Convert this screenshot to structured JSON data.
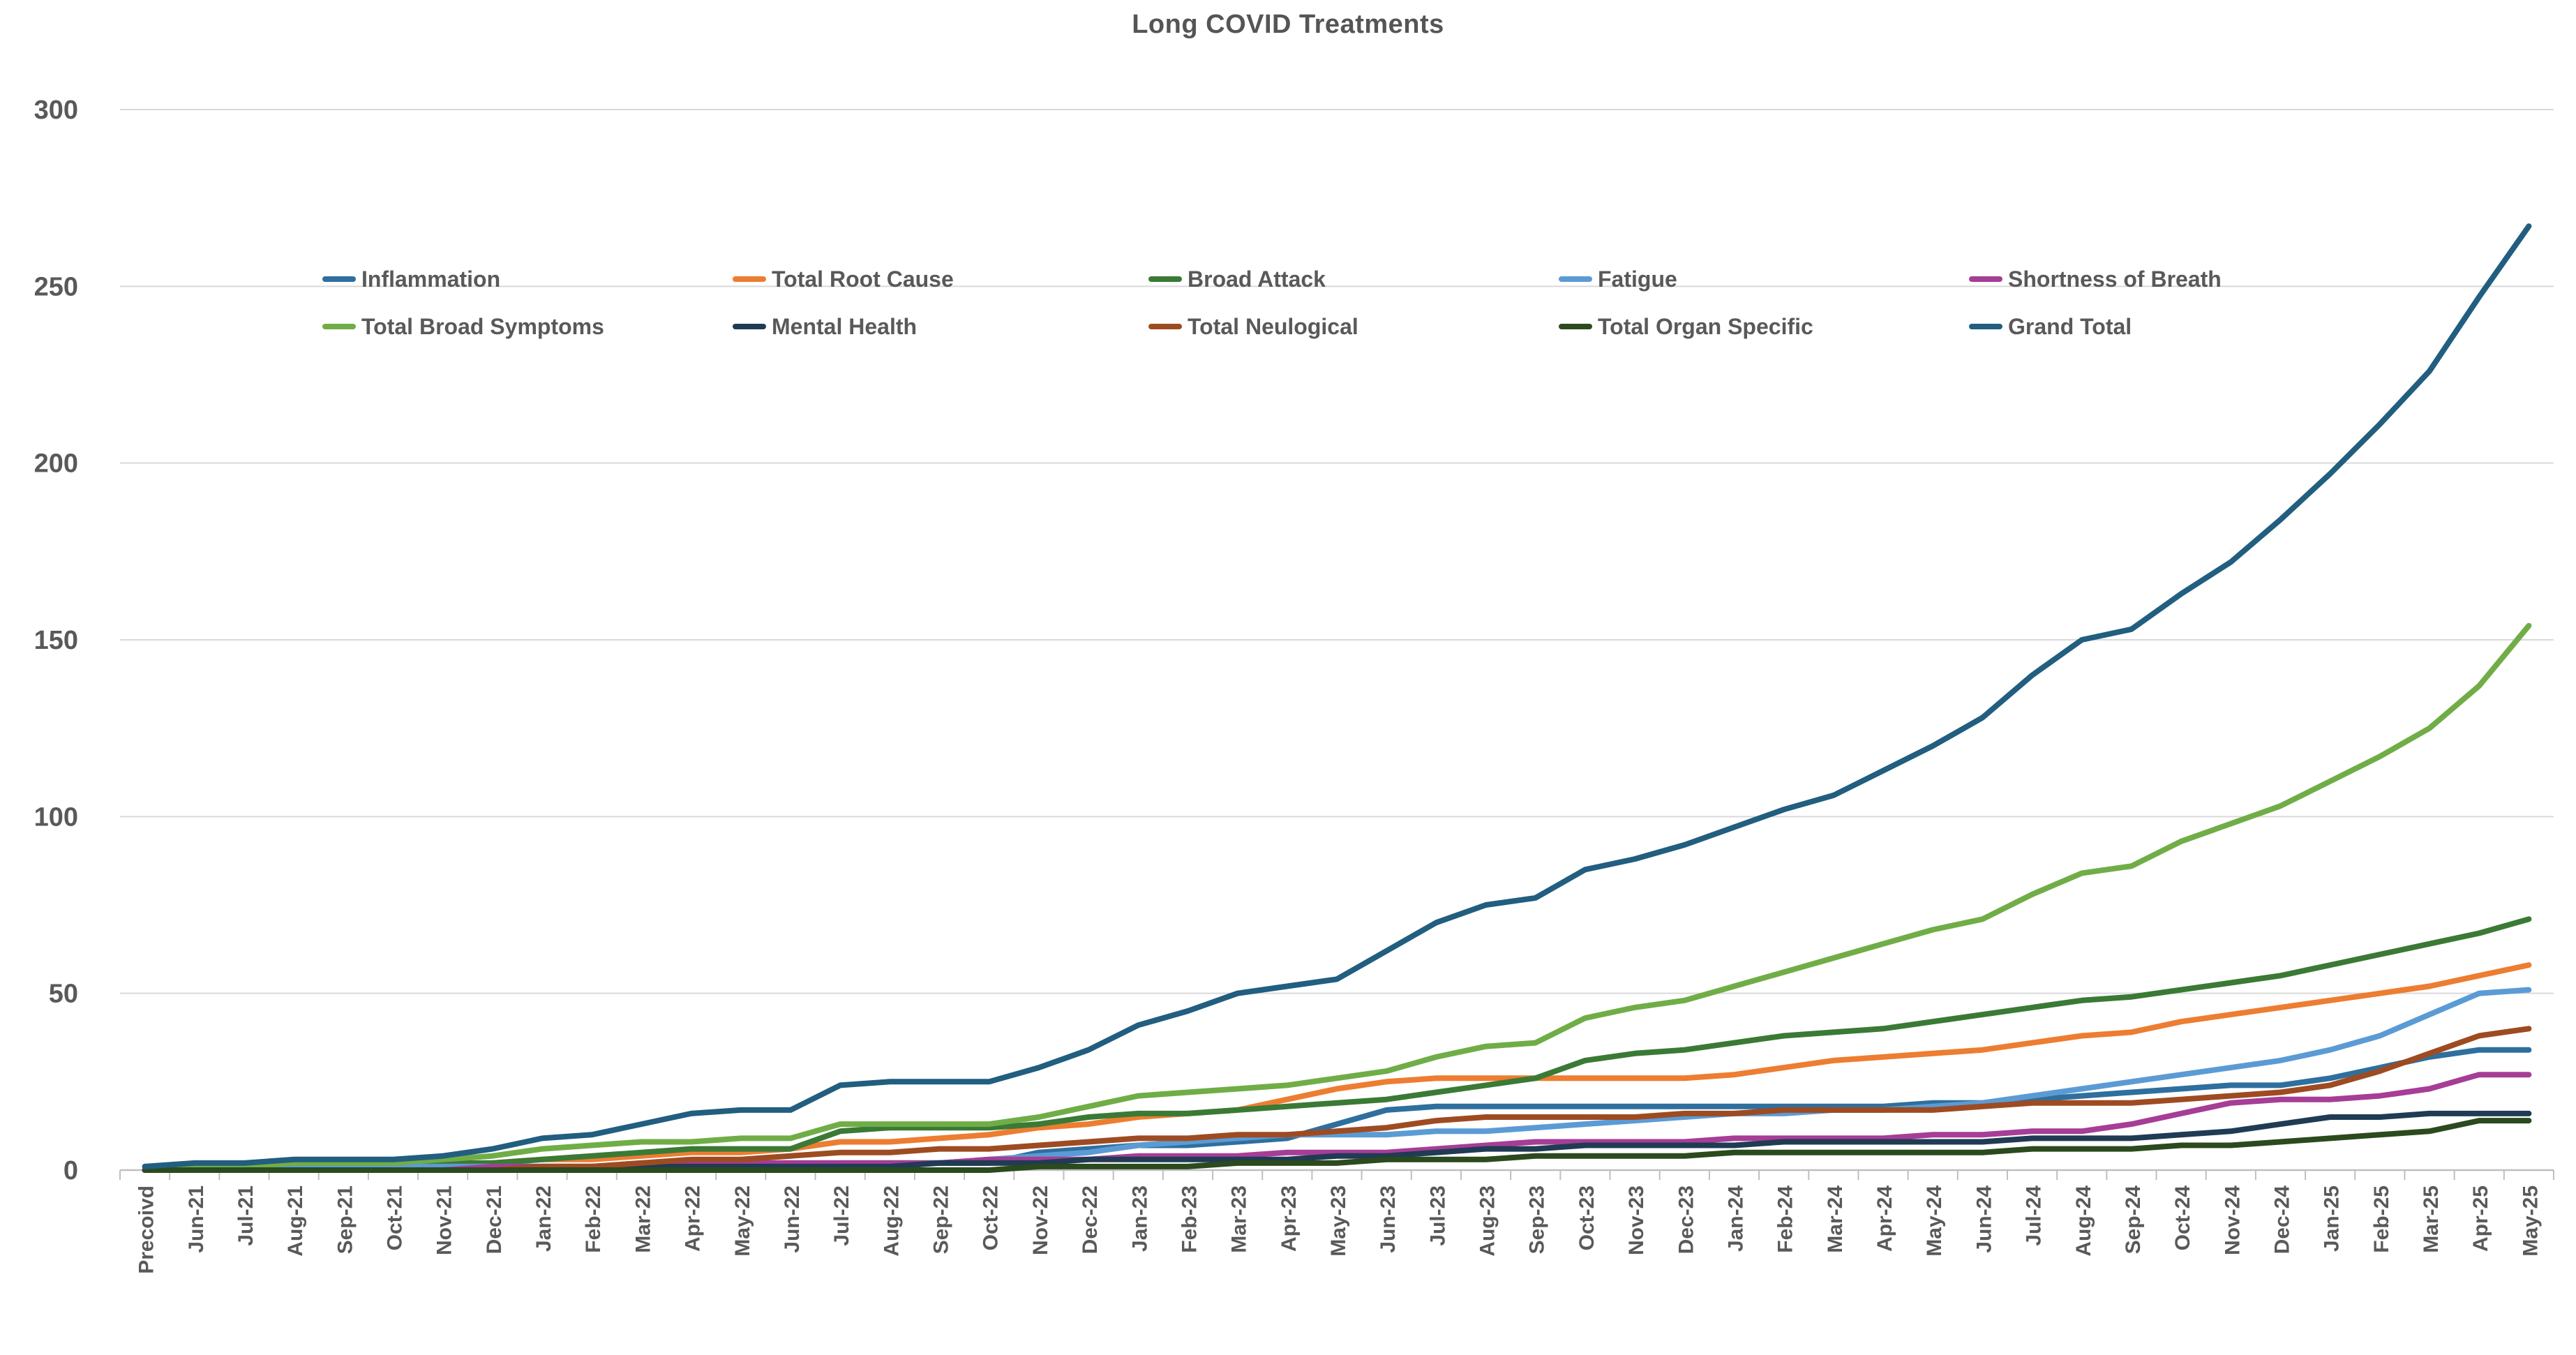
{
  "chart_data": {
    "type": "line",
    "title": "Long COVID Treatments",
    "xlabel": "",
    "ylabel": "",
    "ylim": [
      0,
      300
    ],
    "y_ticks": [
      0,
      50,
      100,
      150,
      200,
      250,
      300
    ],
    "grid": "horizontal",
    "legend_position": "inside-top-left-two-rows",
    "categories": [
      "Precoivd",
      "Jun-21",
      "Jul-21",
      "Aug-21",
      "Sep-21",
      "Oct-21",
      "Nov-21",
      "Dec-21",
      "Jan-22",
      "Feb-22",
      "Mar-22",
      "Apr-22",
      "May-22",
      "Jun-22",
      "Jul-22",
      "Aug-22",
      "Sep-22",
      "Oct-22",
      "Nov-22",
      "Dec-22",
      "Jan-23",
      "Feb-23",
      "Mar-23",
      "Apr-23",
      "May-23",
      "Jun-23",
      "Jul-23",
      "Aug-23",
      "Sep-23",
      "Oct-23",
      "Nov-23",
      "Dec-23",
      "Jan-24",
      "Feb-24",
      "Mar-24",
      "Apr-24",
      "May-24",
      "Jun-24",
      "Jul-24",
      "Aug-24",
      "Sep-24",
      "Oct-24",
      "Nov-24",
      "Dec-24",
      "Jan-25",
      "Feb-25",
      "Mar-25",
      "Apr-25",
      "May-25"
    ],
    "series": [
      {
        "name": "Inflammation",
        "color": "#2E6F9E",
        "values": [
          0,
          1,
          1,
          1,
          1,
          1,
          1,
          1,
          1,
          1,
          1,
          1,
          1,
          1,
          2,
          2,
          2,
          2,
          5,
          6,
          7,
          7,
          8,
          9,
          13,
          17,
          18,
          18,
          18,
          18,
          18,
          18,
          18,
          18,
          18,
          18,
          19,
          19,
          20,
          21,
          22,
          23,
          24,
          24,
          26,
          29,
          32,
          34,
          34
        ]
      },
      {
        "name": "Total Root Cause",
        "color": "#ED7D31",
        "values": [
          0,
          0,
          0,
          1,
          1,
          1,
          1,
          2,
          3,
          3,
          4,
          5,
          5,
          6,
          8,
          8,
          9,
          10,
          12,
          13,
          15,
          16,
          17,
          20,
          23,
          25,
          26,
          26,
          26,
          26,
          26,
          26,
          27,
          29,
          31,
          32,
          33,
          34,
          36,
          38,
          39,
          42,
          44,
          46,
          48,
          50,
          52,
          55,
          58
        ]
      },
      {
        "name": "Broad Attack",
        "color": "#3A7A35",
        "values": [
          0,
          0,
          0,
          1,
          1,
          1,
          2,
          2,
          3,
          4,
          5,
          6,
          6,
          6,
          11,
          12,
          12,
          12,
          13,
          15,
          16,
          16,
          17,
          18,
          19,
          20,
          22,
          24,
          26,
          31,
          33,
          34,
          36,
          38,
          39,
          40,
          42,
          44,
          46,
          48,
          49,
          51,
          53,
          55,
          58,
          61,
          64,
          67,
          71
        ]
      },
      {
        "name": "Fatigue",
        "color": "#5B9BD5",
        "values": [
          1,
          1,
          1,
          1,
          1,
          1,
          1,
          1,
          1,
          1,
          1,
          2,
          2,
          2,
          2,
          2,
          2,
          3,
          4,
          5,
          7,
          8,
          9,
          10,
          10,
          10,
          11,
          11,
          12,
          13,
          14,
          15,
          16,
          16,
          17,
          17,
          18,
          19,
          21,
          23,
          25,
          27,
          29,
          31,
          34,
          38,
          44,
          50,
          51
        ]
      },
      {
        "name": "Shortness of Breath",
        "color": "#A63D96",
        "values": [
          0,
          0,
          0,
          0,
          0,
          0,
          0,
          1,
          1,
          1,
          2,
          2,
          2,
          2,
          2,
          2,
          2,
          3,
          3,
          3,
          4,
          4,
          4,
          5,
          5,
          5,
          6,
          7,
          8,
          8,
          8,
          8,
          9,
          9,
          9,
          9,
          10,
          10,
          11,
          11,
          13,
          16,
          19,
          20,
          20,
          21,
          23,
          27,
          27
        ]
      },
      {
        "name": "Total Broad Symptoms",
        "color": "#70AD47",
        "values": [
          0,
          1,
          1,
          2,
          2,
          2,
          3,
          4,
          6,
          7,
          8,
          8,
          9,
          9,
          13,
          13,
          13,
          13,
          15,
          18,
          21,
          22,
          23,
          24,
          26,
          28,
          32,
          35,
          36,
          43,
          46,
          48,
          52,
          56,
          60,
          64,
          68,
          71,
          78,
          84,
          86,
          93,
          98,
          103,
          110,
          117,
          125,
          137,
          154
        ]
      },
      {
        "name": "Mental Health",
        "color": "#203B54",
        "values": [
          0,
          0,
          0,
          0,
          0,
          0,
          0,
          0,
          0,
          0,
          1,
          1,
          1,
          1,
          1,
          1,
          2,
          2,
          2,
          3,
          3,
          3,
          3,
          3,
          4,
          4,
          5,
          6,
          6,
          7,
          7,
          7,
          7,
          8,
          8,
          8,
          8,
          8,
          9,
          9,
          9,
          10,
          11,
          13,
          15,
          15,
          16,
          16,
          16
        ]
      },
      {
        "name": "Total Neulogical",
        "color": "#9E4B22",
        "values": [
          0,
          0,
          0,
          0,
          0,
          0,
          0,
          0,
          1,
          1,
          2,
          3,
          3,
          4,
          5,
          5,
          6,
          6,
          7,
          8,
          9,
          9,
          10,
          10,
          11,
          12,
          14,
          15,
          15,
          15,
          15,
          16,
          16,
          17,
          17,
          17,
          17,
          18,
          19,
          19,
          19,
          20,
          21,
          22,
          24,
          28,
          33,
          38,
          40
        ]
      },
      {
        "name": "Total Organ Specific",
        "color": "#2B4A1D",
        "values": [
          0,
          0,
          0,
          0,
          0,
          0,
          0,
          0,
          0,
          0,
          0,
          0,
          0,
          0,
          0,
          0,
          0,
          0,
          1,
          1,
          1,
          1,
          2,
          2,
          2,
          3,
          3,
          3,
          4,
          4,
          4,
          4,
          5,
          5,
          5,
          5,
          5,
          5,
          6,
          6,
          6,
          7,
          7,
          8,
          9,
          10,
          11,
          14,
          14
        ]
      },
      {
        "name": "Grand Total",
        "color": "#215E7F",
        "values": [
          1,
          2,
          2,
          3,
          3,
          3,
          4,
          6,
          9,
          10,
          13,
          16,
          17,
          17,
          24,
          25,
          25,
          25,
          29,
          34,
          41,
          45,
          50,
          52,
          54,
          62,
          70,
          75,
          77,
          85,
          88,
          92,
          97,
          102,
          106,
          113,
          120,
          128,
          140,
          150,
          153,
          163,
          172,
          184,
          197,
          211,
          226,
          247,
          267
        ]
      }
    ],
    "legend_rows": [
      [
        "Inflammation",
        "Total Root Cause",
        "Broad Attack",
        "Fatigue",
        "Shortness of Breath"
      ],
      [
        "Total Broad Symptoms",
        "Mental Health",
        "Total Neulogical",
        "Total Organ Specific",
        "Grand Total"
      ]
    ]
  }
}
